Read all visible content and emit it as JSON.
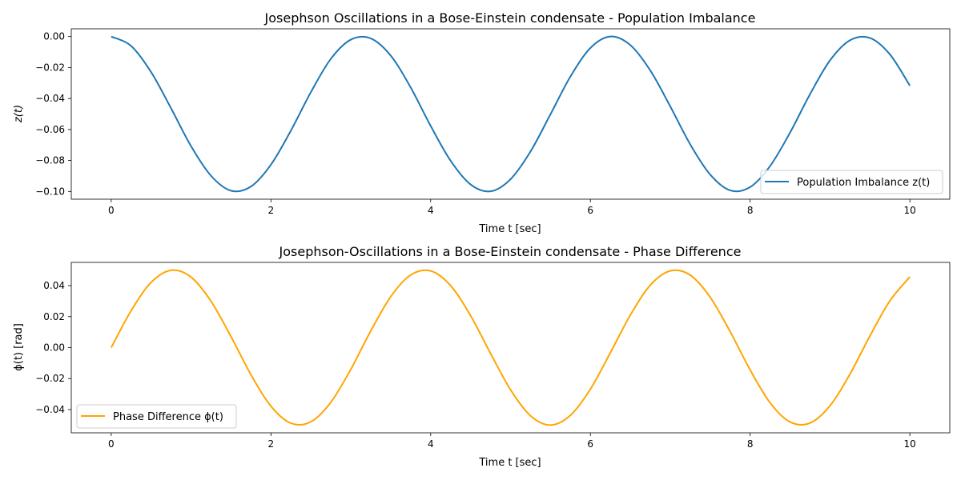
{
  "chart_data": [
    {
      "type": "line",
      "title": "Josephson Oscillations in a Bose-Einstein condensate - Population Imbalance",
      "xlabel": "Time t [sec]",
      "ylabel": "z(t)",
      "xlim": [
        -0.5,
        10.5
      ],
      "ylim": [
        -0.105,
        0.005
      ],
      "xticks": [
        "0",
        "2",
        "4",
        "6",
        "8",
        "10"
      ],
      "yticks": [
        "0.00",
        "−0.02",
        "−0.04",
        "−0.06",
        "−0.08",
        "−0.10"
      ],
      "grid": false,
      "legend_position": "lower-right",
      "series": [
        {
          "name": "Population Imbalance z(t)",
          "color": "#1f77b4",
          "x": [
            0,
            0.25,
            0.5,
            0.75,
            1,
            1.25,
            1.5,
            1.75,
            2,
            2.25,
            2.5,
            2.75,
            3,
            3.25,
            3.5,
            3.75,
            4,
            4.25,
            4.5,
            4.75,
            5,
            5.25,
            5.5,
            5.75,
            6,
            6.25,
            6.5,
            6.75,
            7,
            7.25,
            7.5,
            7.75,
            8,
            8.25,
            8.5,
            8.75,
            9,
            9.25,
            9.5,
            9.75,
            10
          ],
          "values": [
            0.0,
            -0.0061,
            -0.023,
            -0.0464,
            -0.0708,
            -0.0899,
            -0.0995,
            -0.0968,
            -0.0827,
            -0.0607,
            -0.0359,
            -0.0144,
            -0.002,
            -0.0012,
            -0.0123,
            -0.0329,
            -0.0577,
            -0.0802,
            -0.0955,
            -0.0999,
            -0.0921,
            -0.0742,
            -0.0502,
            -0.0258,
            -0.0074,
            0.0,
            -0.0055,
            -0.0219,
            -0.0451,
            -0.0696,
            -0.0891,
            -0.0993,
            -0.0972,
            -0.0836,
            -0.062,
            -0.0372,
            -0.0154,
            -0.0024,
            -0.0009,
            -0.0115,
            -0.0317
          ]
        }
      ]
    },
    {
      "type": "line",
      "title": "Josephson-Oscillations in a Bose-Einstein condensate - Phase Difference",
      "xlabel": "Time t [sec]",
      "ylabel": "ϕ(t) [rad]",
      "xlim": [
        -0.5,
        10.5
      ],
      "ylim": [
        -0.055,
        0.055
      ],
      "xticks": [
        "0",
        "2",
        "4",
        "6",
        "8",
        "10"
      ],
      "yticks": [
        "0.04",
        "0.02",
        "0.00",
        "−0.02",
        "−0.04"
      ],
      "grid": false,
      "legend_position": "lower-left",
      "series": [
        {
          "name": "Phase Difference ϕ(t)",
          "color": "#ffa500",
          "x": [
            0,
            0.25,
            0.5,
            0.75,
            1,
            1.25,
            1.5,
            1.75,
            2,
            2.25,
            2.5,
            2.75,
            3,
            3.25,
            3.5,
            3.75,
            4,
            4.25,
            4.5,
            4.75,
            5,
            5.25,
            5.5,
            5.75,
            6,
            6.25,
            6.5,
            6.75,
            7,
            7.25,
            7.5,
            7.75,
            8,
            8.25,
            8.5,
            8.75,
            9,
            9.25,
            9.5,
            9.75,
            10
          ],
          "values": [
            0.0,
            0.0239,
            0.0421,
            0.0499,
            0.0455,
            0.0299,
            0.0071,
            -0.0175,
            -0.0378,
            -0.0488,
            -0.0479,
            -0.0353,
            -0.014,
            0.0108,
            0.0329,
            0.0469,
            0.0495,
            0.04,
            0.0206,
            -0.0038,
            -0.0272,
            -0.044,
            -0.05,
            -0.0437,
            -0.0268,
            -0.0033,
            0.021,
            0.0403,
            0.0495,
            0.0468,
            0.0325,
            0.0103,
            -0.0144,
            -0.0356,
            -0.048,
            -0.0487,
            -0.0375,
            -0.0171,
            0.0075,
            0.0302,
            0.0456
          ]
        }
      ]
    }
  ]
}
